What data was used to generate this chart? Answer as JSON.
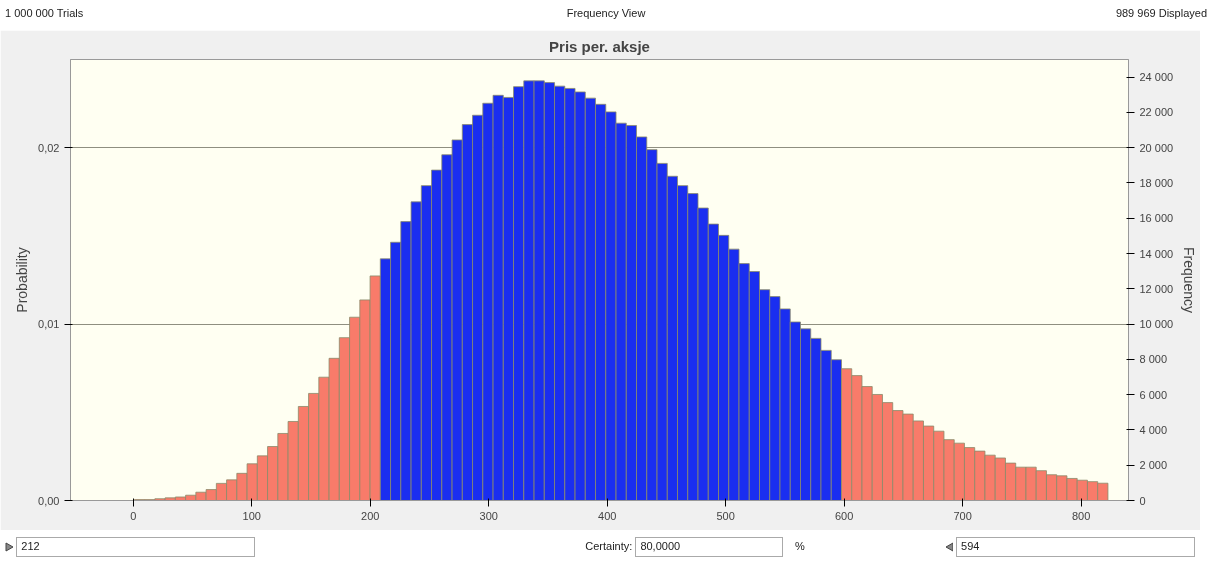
{
  "chart_data": {
    "type": "histogram",
    "title": "Pris per. aksje",
    "ylabel": "Probability",
    "y2label": "Frequency",
    "annotations": [
      "1 000 000 Trials",
      "Frequency View",
      "989 969 Displayed",
      "212",
      "Certainty:",
      "80,0000",
      "%",
      "594"
    ],
    "bins": [
      -33.7,
      -25.05,
      -16.4,
      -7.75,
      0.9,
      9.55,
      18.2,
      26.85,
      35.5,
      44.15,
      52.8,
      61.45,
      70.1,
      78.75,
      87.4,
      96.05,
      104.7,
      113.35,
      122,
      130.65,
      139.3,
      147.95,
      156.6,
      165.25,
      173.9,
      182.55,
      191.2,
      199.85,
      208.5,
      217.15,
      225.8,
      234.45,
      243.1,
      251.75,
      260.4,
      269.05,
      277.7,
      286.35,
      295,
      303.65,
      312.3,
      320.95,
      329.6,
      338.25,
      346.9,
      355.55,
      364.2,
      372.85,
      381.5,
      390.15,
      398.8,
      407.45,
      416.1,
      424.75,
      433.4,
      442.05,
      450.7,
      459.35,
      468,
      476.65,
      485.3,
      493.95,
      502.6,
      511.25,
      519.9,
      528.55,
      537.2,
      545.85,
      554.5,
      563.15,
      571.8,
      580.45,
      589.1,
      597.75,
      606.4,
      615.05,
      623.7,
      632.35,
      641,
      649.65,
      658.3,
      666.95,
      675.6,
      684.25,
      692.9,
      701.55,
      710.2,
      718.85,
      727.5,
      736.15,
      744.8,
      753.45,
      762.1,
      770.75,
      779.4,
      788.05,
      796.7,
      805.35,
      814,
      822.65
    ],
    "series": [
      {
        "axis": "y2",
        "values": [
          null,
          null,
          null,
          null,
          50,
          50,
          100,
          150,
          200,
          300,
          470,
          620,
          970,
          1170,
          1540,
          2080,
          2530,
          3060,
          3800,
          4480,
          5330,
          6070,
          6990,
          8060,
          9230,
          10390,
          11370,
          12730,
          13700,
          14640,
          15810,
          16930,
          17850,
          18730,
          19600,
          20440,
          21310,
          21840,
          22520,
          22970,
          22850,
          23460,
          23790,
          23790,
          23690,
          23490,
          23360,
          23160,
          22810,
          22460,
          22030,
          21390,
          21260,
          20610,
          19890,
          19110,
          18380,
          17850,
          17400,
          16580,
          15670,
          15030,
          14250,
          13430,
          12980,
          11950,
          11560,
          10860,
          10120,
          9730,
          9190,
          8510,
          7980,
          7470,
          7080,
          6460,
          6010,
          5550,
          5100,
          4900,
          4510,
          4220,
          3930,
          3450,
          3250,
          3000,
          2800,
          2570,
          2410,
          2120,
          1890,
          1890,
          1690,
          1460,
          1400,
          1250,
          1150,
          1070,
          980
        ],
        "colors": [
          "#f87b6a",
          "#f87b6a",
          "#f87b6a",
          "#f87b6a",
          "#f87b6a",
          "#f87b6a",
          "#f87b6a",
          "#f87b6a",
          "#f87b6a",
          "#f87b6a",
          "#f87b6a",
          "#f87b6a",
          "#f87b6a",
          "#f87b6a",
          "#f87b6a",
          "#f87b6a",
          "#f87b6a",
          "#f87b6a",
          "#f87b6a",
          "#f87b6a",
          "#f87b6a",
          "#f87b6a",
          "#f87b6a",
          "#f87b6a",
          "#f87b6a",
          "#f87b6a",
          "#f87b6a",
          "#f87b6a",
          "#1a2ef0",
          "#1a2ef0",
          "#1a2ef0",
          "#1a2ef0",
          "#1a2ef0",
          "#1a2ef0",
          "#1a2ef0",
          "#1a2ef0",
          "#1a2ef0",
          "#1a2ef0",
          "#1a2ef0",
          "#1a2ef0",
          "#1a2ef0",
          "#1a2ef0",
          "#1a2ef0",
          "#1a2ef0",
          "#1a2ef0",
          "#1a2ef0",
          "#1a2ef0",
          "#1a2ef0",
          "#1a2ef0",
          "#1a2ef0",
          "#1a2ef0",
          "#1a2ef0",
          "#1a2ef0",
          "#1a2ef0",
          "#1a2ef0",
          "#1a2ef0",
          "#1a2ef0",
          "#1a2ef0",
          "#1a2ef0",
          "#1a2ef0",
          "#1a2ef0",
          "#1a2ef0",
          "#1a2ef0",
          "#1a2ef0",
          "#1a2ef0",
          "#1a2ef0",
          "#1a2ef0",
          "#1a2ef0",
          "#1a2ef0",
          "#1a2ef0",
          "#1a2ef0",
          "#1a2ef0",
          "#1a2ef0",
          "#f87b6a",
          "#f87b6a",
          "#f87b6a",
          "#f87b6a",
          "#f87b6a",
          "#f87b6a",
          "#f87b6a",
          "#f87b6a",
          "#f87b6a",
          "#f87b6a",
          "#f87b6a",
          "#f87b6a",
          "#f87b6a",
          "#f87b6a",
          "#f87b6a",
          "#f87b6a",
          "#f87b6a",
          "#f87b6a",
          "#f87b6a",
          "#f87b6a",
          "#f87b6a",
          "#f87b6a",
          "#f87b6a",
          "#f87b6a",
          "#f87b6a",
          "#f87b6a"
        ]
      }
    ],
    "xlim": [
      -53,
      840
    ],
    "xticks": [
      0,
      100,
      200,
      300,
      400,
      500,
      600,
      700,
      800
    ],
    "ylim": [
      0,
      0.025
    ],
    "yticks": [
      {
        "value": 0,
        "label": "0,00"
      },
      {
        "value": 0.01,
        "label": "0,01"
      },
      {
        "value": 0.02,
        "label": "0,02"
      }
    ],
    "y2lim": [
      0,
      25000
    ],
    "y2ticks": [
      {
        "value": 0,
        "label": "0"
      },
      {
        "value": 2000,
        "label": "2 000"
      },
      {
        "value": 4000,
        "label": "4 000"
      },
      {
        "value": 6000,
        "label": "6 000"
      },
      {
        "value": 8000,
        "label": "8 000"
      },
      {
        "value": 10000,
        "label": "10 000"
      },
      {
        "value": 12000,
        "label": "12 000"
      },
      {
        "value": 14000,
        "label": "14 000"
      },
      {
        "value": 16000,
        "label": "16 000"
      },
      {
        "value": 18000,
        "label": "18 000"
      },
      {
        "value": 20000,
        "label": "20 000"
      },
      {
        "value": 22000,
        "label": "22 000"
      },
      {
        "value": 24000,
        "label": "24 000"
      }
    ],
    "grid": "y"
  }
}
